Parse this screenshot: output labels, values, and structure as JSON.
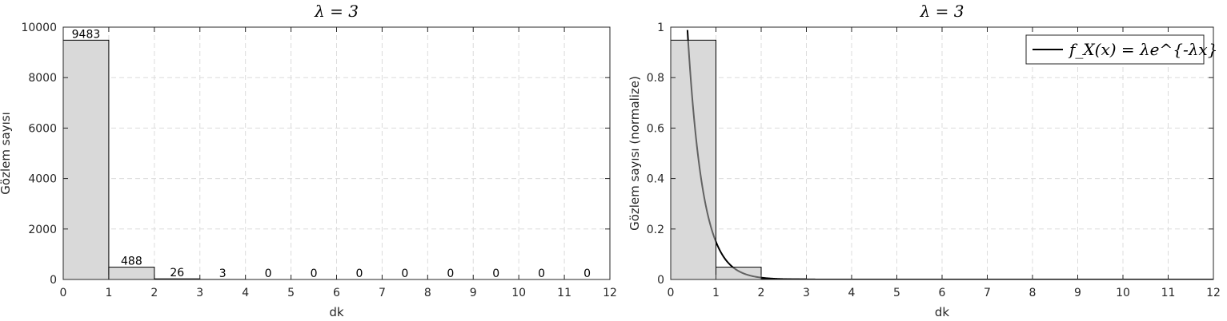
{
  "chart_data": [
    {
      "type": "bar",
      "title": "λ = 3",
      "xlabel": "dk",
      "ylabel": "Gözlem sayısı",
      "xlim": [
        0,
        12
      ],
      "ylim": [
        0,
        10000
      ],
      "xticks": [
        0,
        1,
        2,
        3,
        4,
        5,
        6,
        7,
        8,
        9,
        10,
        11,
        12
      ],
      "yticks": [
        0,
        2000,
        4000,
        6000,
        8000,
        10000
      ],
      "grid": true,
      "bin_edges": [
        0,
        1,
        2,
        3,
        4,
        5,
        6,
        7,
        8,
        9,
        10,
        11,
        12
      ],
      "values": [
        9483,
        488,
        26,
        3,
        0,
        0,
        0,
        0,
        0,
        0,
        0,
        0
      ],
      "data_labels": [
        "9483",
        "488",
        "26",
        "3",
        "0",
        "0",
        "0",
        "0",
        "0",
        "0",
        "0",
        "0"
      ],
      "bar_color": "#d9d9d9",
      "edge_color": "#000000"
    },
    {
      "type": "bar",
      "title": "λ = 3",
      "xlabel": "dk",
      "ylabel": "Gözlem sayısı (normalize)",
      "xlim": [
        0,
        12
      ],
      "ylim": [
        0,
        1
      ],
      "xticks": [
        0,
        1,
        2,
        3,
        4,
        5,
        6,
        7,
        8,
        9,
        10,
        11,
        12
      ],
      "yticks": [
        0,
        0.2,
        0.4,
        0.6,
        0.8,
        1
      ],
      "ytick_labels": [
        "0",
        "0.2",
        "0.4",
        "0.6",
        "0.8",
        "1"
      ],
      "grid": true,
      "bin_edges": [
        0,
        1,
        2,
        3,
        4,
        5,
        6,
        7,
        8,
        9,
        10,
        11,
        12
      ],
      "values": [
        0.9483,
        0.0488,
        0.0026,
        0.0003,
        0,
        0,
        0,
        0,
        0,
        0,
        0,
        0
      ],
      "bar_color": "#d9d9d9",
      "edge_color": "#000000",
      "overlay_line": {
        "name": "f_X(x) = λe^{-λx}",
        "function": "lambda*exp(-lambda*x)",
        "lambda": 3,
        "x_range": [
          0,
          12
        ],
        "color": "#000000"
      },
      "legend": {
        "position": "top-right",
        "entries": [
          "f_X(x) = λe^{-λx}"
        ]
      }
    }
  ]
}
